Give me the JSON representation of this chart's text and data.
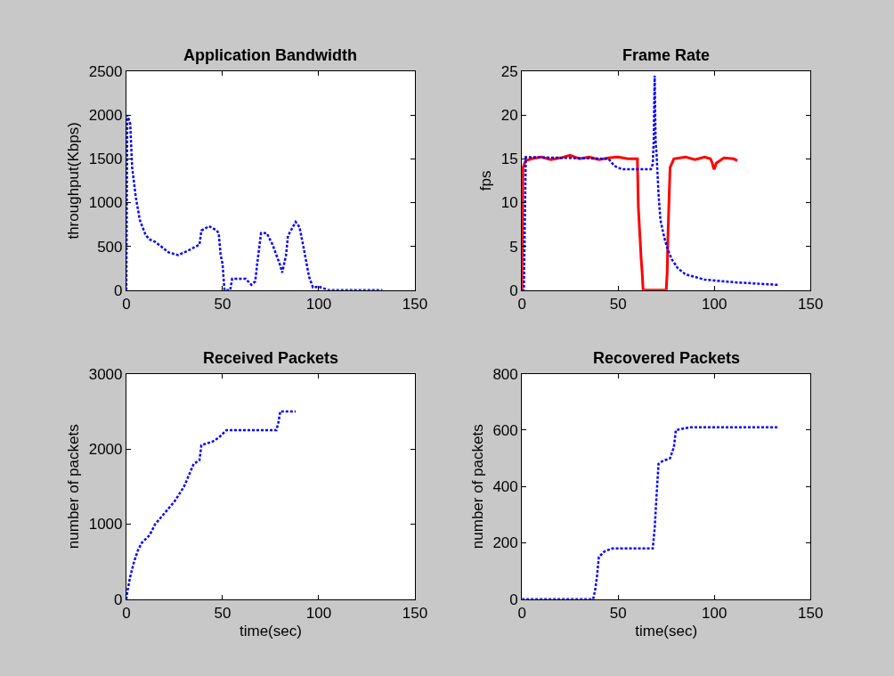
{
  "chart_data": [
    {
      "type": "line",
      "title": "Application Bandwidth",
      "ylabel": "throughput(Kbps)",
      "xlim": [
        0,
        150
      ],
      "xticks": [
        0,
        50,
        100,
        150
      ],
      "ylim": [
        0,
        2500
      ],
      "yticks": [
        0,
        500,
        1000,
        1500,
        2000,
        2500
      ],
      "line_style": "dotted",
      "marker": "none",
      "series": [
        {
          "color": "#0000ff",
          "x": [
            0,
            0.5,
            2,
            3,
            5,
            7,
            10,
            12,
            15,
            18,
            22,
            27,
            32,
            38,
            39,
            43,
            47,
            48,
            49,
            50,
            51,
            54,
            55,
            62,
            65,
            67,
            68,
            70,
            73,
            76,
            80,
            81,
            83,
            84,
            88,
            90,
            92,
            95,
            97,
            100,
            105,
            133
          ],
          "values": [
            0,
            2000,
            1900,
            1400,
            1050,
            800,
            630,
            580,
            550,
            500,
            430,
            400,
            450,
            520,
            680,
            730,
            680,
            650,
            400,
            300,
            0,
            0,
            130,
            130,
            60,
            100,
            300,
            650,
            650,
            520,
            280,
            200,
            400,
            620,
            780,
            720,
            500,
            150,
            30,
            40,
            0,
            0
          ]
        }
      ]
    },
    {
      "type": "line",
      "title": "Frame Rate",
      "ylabel": "fps",
      "xlim": [
        0,
        150
      ],
      "xticks": [
        0,
        50,
        100,
        150
      ],
      "ylim": [
        0,
        25
      ],
      "yticks": [
        0,
        5,
        10,
        15,
        20,
        25
      ],
      "marker": "none",
      "series": [
        {
          "color": "#ff0000",
          "line_style": "solid",
          "x": [
            0,
            0.5,
            2,
            5,
            10,
            15,
            20,
            25,
            30,
            35,
            40,
            45,
            50,
            55,
            60,
            60.5,
            62,
            62.5,
            63,
            75,
            75.5,
            76,
            77,
            79,
            85,
            90,
            95,
            98,
            99,
            99.5,
            100,
            101,
            105,
            110,
            112
          ],
          "values": [
            0,
            14,
            14.8,
            15,
            15.2,
            14.9,
            15.1,
            15.4,
            15,
            15.2,
            14.9,
            15.1,
            15.2,
            15,
            15,
            9.5,
            3.5,
            2,
            0,
            0,
            2,
            7,
            14,
            15,
            15.2,
            14.9,
            15.2,
            15,
            14.5,
            14,
            13.8,
            14.5,
            15.1,
            15,
            14.8
          ]
        },
        {
          "color": "#0000ff",
          "line_style": "dotted",
          "x": [
            0,
            1,
            2,
            45,
            48,
            52,
            67,
            68,
            68.5,
            69,
            69.5,
            70,
            71,
            72,
            74,
            76,
            78,
            81,
            85,
            95,
            110,
            133
          ],
          "values": [
            0,
            0,
            15.2,
            15,
            14.2,
            13.8,
            13.8,
            14.4,
            17,
            24.5,
            17,
            15.5,
            11,
            8,
            6,
            4.5,
            3.5,
            2.5,
            1.8,
            1.2,
            0.9,
            0.6
          ]
        }
      ]
    },
    {
      "type": "line",
      "title": "Received Packets",
      "xlabel": "time(sec)",
      "ylabel": "number of packets",
      "xlim": [
        0,
        150
      ],
      "xticks": [
        0,
        50,
        100,
        150
      ],
      "ylim": [
        0,
        3000
      ],
      "yticks": [
        0,
        1000,
        2000,
        3000
      ],
      "line_style": "dotted",
      "marker": "none",
      "series": [
        {
          "color": "#0000ff",
          "x": [
            0,
            0.5,
            2,
            4,
            6,
            8,
            12,
            15,
            20,
            25,
            30,
            35,
            38,
            39,
            45,
            48,
            52,
            78,
            79,
            80,
            88
          ],
          "values": [
            0,
            100,
            300,
            500,
            650,
            750,
            850,
            1000,
            1150,
            1300,
            1500,
            1800,
            1850,
            2050,
            2100,
            2150,
            2250,
            2250,
            2350,
            2500,
            2500
          ]
        }
      ]
    },
    {
      "type": "line",
      "title": "Recovered Packets",
      "xlabel": "time(sec)",
      "ylabel": "number of packets",
      "xlim": [
        0,
        150
      ],
      "xticks": [
        0,
        50,
        100,
        150
      ],
      "ylim": [
        0,
        800
      ],
      "yticks": [
        0,
        200,
        400,
        600,
        800
      ],
      "line_style": "dotted",
      "marker": "none",
      "series": [
        {
          "color": "#0000ff",
          "x": [
            0,
            37,
            38,
            39,
            40,
            43,
            47,
            60,
            68,
            69,
            70,
            71,
            73,
            77,
            79,
            80,
            87,
            133
          ],
          "values": [
            0,
            0,
            30,
            80,
            150,
            170,
            180,
            180,
            180,
            250,
            370,
            480,
            490,
            500,
            540,
            600,
            610,
            610
          ]
        }
      ]
    }
  ]
}
